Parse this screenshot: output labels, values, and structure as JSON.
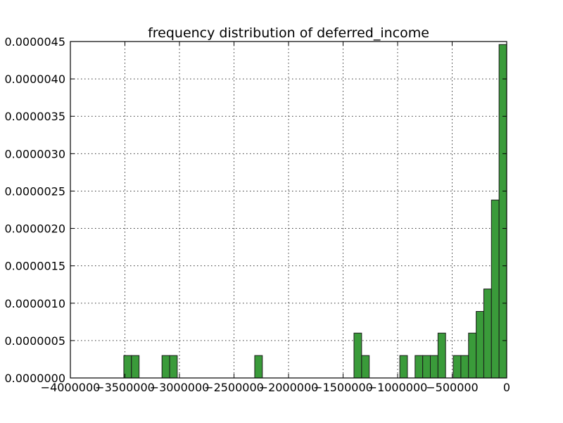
{
  "chart_data": {
    "type": "bar",
    "title": "frequency distribution of deferred_income",
    "xlabel": "",
    "ylabel": "",
    "xlim": [
      -4000000,
      0
    ],
    "ylim": [
      0,
      4.5e-06
    ],
    "grid": true,
    "bar_color": "#3a9b3a",
    "bin_width": 70000,
    "x_ticks": [
      -4000000,
      -3500000,
      -3000000,
      -2500000,
      -2000000,
      -1500000,
      -1000000,
      -500000,
      0
    ],
    "x_tick_labels": [
      "−4000000",
      "−3500000",
      "−3000000",
      "−2500000",
      "−2000000",
      "−1500000",
      "−1000000",
      "−500000",
      "0"
    ],
    "y_ticks": [
      0,
      5e-07,
      1e-06,
      1.5e-06,
      2e-06,
      2.5e-06,
      3e-06,
      3.5e-06,
      4e-06,
      4.5e-06
    ],
    "y_tick_labels": [
      "0.0000000",
      "0.0000005",
      "0.0000010",
      "0.0000015",
      "0.0000020",
      "0.0000025",
      "0.0000030",
      "0.0000035",
      "0.0000040",
      "0.0000045"
    ],
    "bins": [
      {
        "x": -3510000,
        "value": 3e-07
      },
      {
        "x": -3440000,
        "value": 3e-07
      },
      {
        "x": -3160000,
        "value": 3e-07
      },
      {
        "x": -3090000,
        "value": 3e-07
      },
      {
        "x": -2310000,
        "value": 3e-07
      },
      {
        "x": -1400000,
        "value": 6e-07
      },
      {
        "x": -1330000,
        "value": 3e-07
      },
      {
        "x": -980000,
        "value": 3e-07
      },
      {
        "x": -840000,
        "value": 3e-07
      },
      {
        "x": -770000,
        "value": 3e-07
      },
      {
        "x": -700000,
        "value": 3e-07
      },
      {
        "x": -630000,
        "value": 6e-07
      },
      {
        "x": -490000,
        "value": 3e-07
      },
      {
        "x": -420000,
        "value": 3e-07
      },
      {
        "x": -350000,
        "value": 6e-07
      },
      {
        "x": -280000,
        "value": 8.9e-07
      },
      {
        "x": -210000,
        "value": 1.19e-06
      },
      {
        "x": -140000,
        "value": 2.38e-06
      },
      {
        "x": -70000,
        "value": 4.46e-06
      }
    ]
  }
}
